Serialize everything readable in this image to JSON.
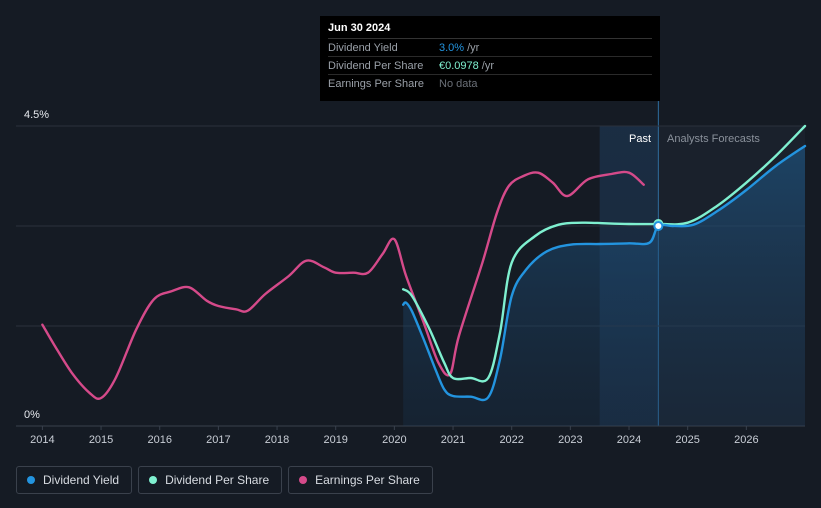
{
  "tooltip": {
    "date": "Jun 30 2024",
    "rows": [
      {
        "name": "Dividend Yield",
        "value": "3.0%",
        "unit": "/yr",
        "color": "#2394df"
      },
      {
        "name": "Dividend Per Share",
        "value": "€0.0978",
        "unit": "/yr",
        "color": "#7ff0d0"
      },
      {
        "name": "Earnings Per Share",
        "value": "No data",
        "unit": "",
        "color": ""
      }
    ]
  },
  "zones": {
    "past_label": "Past",
    "forecast_label": "Analysts Forecasts"
  },
  "legend": [
    {
      "label": "Dividend Yield",
      "color": "#2394df"
    },
    {
      "label": "Dividend Per Share",
      "color": "#7ff0d0"
    },
    {
      "label": "Earnings Per Share",
      "color": "#d54a8a"
    }
  ],
  "chart_data": {
    "type": "line",
    "y_top_label": "4.5%",
    "y_bottom_label": "0%",
    "ylim": [
      0,
      4.5
    ],
    "xlim": [
      2013.55,
      2027.0
    ],
    "x_ticks": [
      2014,
      2015,
      2016,
      2017,
      2018,
      2019,
      2020,
      2021,
      2022,
      2023,
      2024,
      2025,
      2026
    ],
    "past_start": 2023.5,
    "now": 2024.5,
    "series": [
      {
        "name": "Dividend Yield",
        "color": "#2394df",
        "area": true,
        "points": [
          [
            2020.15,
            1.82
          ],
          [
            2020.2,
            1.85
          ],
          [
            2020.3,
            1.72
          ],
          [
            2020.5,
            1.3
          ],
          [
            2020.7,
            0.85
          ],
          [
            2020.85,
            0.55
          ],
          [
            2021.0,
            0.45
          ],
          [
            2021.3,
            0.44
          ],
          [
            2021.6,
            0.43
          ],
          [
            2021.8,
            1.0
          ],
          [
            2022.0,
            1.95
          ],
          [
            2022.25,
            2.35
          ],
          [
            2022.6,
            2.62
          ],
          [
            2023.0,
            2.72
          ],
          [
            2023.5,
            2.73
          ],
          [
            2024.0,
            2.74
          ],
          [
            2024.35,
            2.75
          ],
          [
            2024.5,
            3.0
          ],
          [
            2024.75,
            3.0
          ],
          [
            2025.1,
            3.02
          ],
          [
            2025.5,
            3.22
          ],
          [
            2026.0,
            3.54
          ],
          [
            2026.5,
            3.9
          ],
          [
            2027.0,
            4.2
          ]
        ]
      },
      {
        "name": "Dividend Per Share",
        "color": "#7ff0d0",
        "area": false,
        "points": [
          [
            2020.15,
            2.05
          ],
          [
            2020.3,
            1.95
          ],
          [
            2020.6,
            1.45
          ],
          [
            2020.85,
            0.95
          ],
          [
            2021.0,
            0.72
          ],
          [
            2021.3,
            0.72
          ],
          [
            2021.6,
            0.72
          ],
          [
            2021.8,
            1.4
          ],
          [
            2022.0,
            2.45
          ],
          [
            2022.4,
            2.85
          ],
          [
            2022.8,
            3.02
          ],
          [
            2023.2,
            3.05
          ],
          [
            2023.6,
            3.04
          ],
          [
            2024.0,
            3.03
          ],
          [
            2024.5,
            3.03
          ],
          [
            2025.0,
            3.05
          ],
          [
            2025.5,
            3.3
          ],
          [
            2026.0,
            3.65
          ],
          [
            2026.5,
            4.05
          ],
          [
            2027.0,
            4.5
          ]
        ]
      },
      {
        "name": "Earnings Per Share",
        "color": "#d54a8a",
        "area": false,
        "points": [
          [
            2014.0,
            1.52
          ],
          [
            2014.2,
            1.22
          ],
          [
            2014.5,
            0.8
          ],
          [
            2014.8,
            0.5
          ],
          [
            2015.0,
            0.42
          ],
          [
            2015.25,
            0.72
          ],
          [
            2015.6,
            1.45
          ],
          [
            2015.9,
            1.9
          ],
          [
            2016.2,
            2.02
          ],
          [
            2016.5,
            2.08
          ],
          [
            2016.8,
            1.88
          ],
          [
            2017.0,
            1.8
          ],
          [
            2017.3,
            1.75
          ],
          [
            2017.5,
            1.73
          ],
          [
            2017.8,
            1.98
          ],
          [
            2018.2,
            2.25
          ],
          [
            2018.5,
            2.48
          ],
          [
            2018.8,
            2.38
          ],
          [
            2019.0,
            2.3
          ],
          [
            2019.3,
            2.3
          ],
          [
            2019.55,
            2.3
          ],
          [
            2019.8,
            2.58
          ],
          [
            2020.0,
            2.8
          ],
          [
            2020.2,
            2.25
          ],
          [
            2020.5,
            1.55
          ],
          [
            2020.75,
            0.95
          ],
          [
            2020.95,
            0.78
          ],
          [
            2021.1,
            1.35
          ],
          [
            2021.5,
            2.45
          ],
          [
            2021.75,
            3.2
          ],
          [
            2021.95,
            3.6
          ],
          [
            2022.2,
            3.75
          ],
          [
            2022.45,
            3.8
          ],
          [
            2022.7,
            3.65
          ],
          [
            2022.95,
            3.45
          ],
          [
            2023.3,
            3.7
          ],
          [
            2023.7,
            3.78
          ],
          [
            2024.0,
            3.8
          ],
          [
            2024.25,
            3.62
          ]
        ]
      }
    ],
    "markers": [
      {
        "series": "Dividend Per Share",
        "x": 2024.5,
        "y": 3.03
      },
      {
        "series": "Dividend Yield",
        "x": 2024.5,
        "y": 3.0
      }
    ]
  }
}
